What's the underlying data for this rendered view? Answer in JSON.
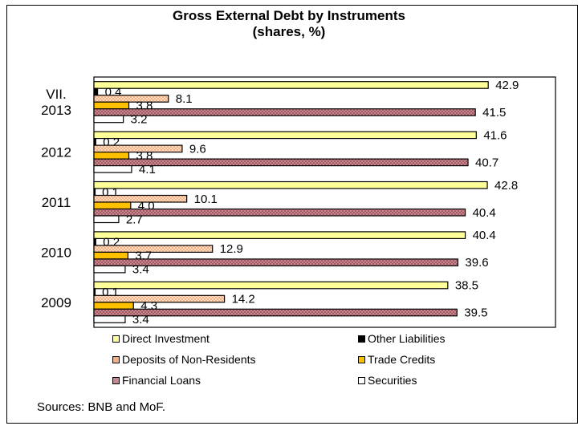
{
  "chart_data": {
    "type": "bar",
    "orientation": "horizontal",
    "title": "Gross External Debt by Instruments",
    "subtitle": "(shares, %)",
    "categories": [
      "VII.\n2013",
      "2012",
      "2011",
      "2010",
      "2009"
    ],
    "series": [
      {
        "name": "Direct Investment",
        "color": "#ffff99",
        "pattern": "solid",
        "values": [
          42.9,
          41.6,
          42.8,
          40.4,
          38.5
        ]
      },
      {
        "name": "Other Liabilities",
        "color": "#000000",
        "pattern": "solid",
        "values": [
          0.4,
          0.2,
          0.1,
          0.2,
          0.1
        ]
      },
      {
        "name": "Deposits of Non-Residents",
        "color": "#f4b183",
        "pattern": "checker",
        "values": [
          8.1,
          9.6,
          10.1,
          12.9,
          14.2
        ]
      },
      {
        "name": "Trade Credits",
        "color": "#ffc000",
        "pattern": "solid",
        "values": [
          3.8,
          3.8,
          4.0,
          3.7,
          4.3
        ]
      },
      {
        "name": "Financial Loans",
        "color": "#c9888f",
        "pattern": "checker",
        "values": [
          41.5,
          40.7,
          40.4,
          39.6,
          39.5
        ]
      },
      {
        "name": "Securities",
        "color": "#ffffff",
        "pattern": "solid",
        "values": [
          3.2,
          4.1,
          2.7,
          3.4,
          3.4
        ]
      }
    ],
    "xlim": [
      0,
      50
    ],
    "grid": false,
    "legend": "bottom",
    "data_labels": true
  },
  "legend_items": [
    {
      "label": "Direct Investment",
      "color": "#ffff99"
    },
    {
      "label": "Other Liabilities",
      "color": "#000000"
    },
    {
      "label": "Deposits of Non-Residents",
      "color": "#f4b183"
    },
    {
      "label": "Trade Credits",
      "color": "#ffc000"
    },
    {
      "label": "Financial Loans",
      "color": "#c9888f"
    },
    {
      "label": "Securities",
      "color": "#ffffff"
    }
  ],
  "source": "Sources: BNB and MoF."
}
